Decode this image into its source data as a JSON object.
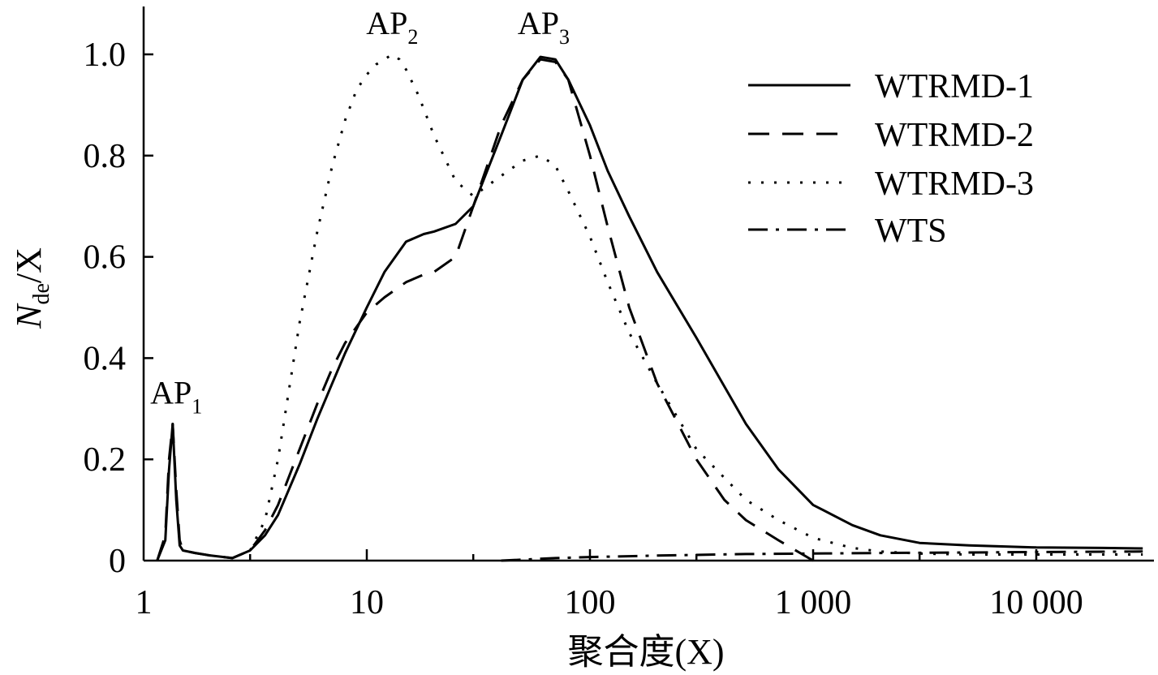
{
  "chart_data": {
    "type": "line",
    "xscale": "log",
    "xlim": [
      1,
      30000
    ],
    "ylim": [
      0,
      1.1
    ],
    "xlabel": "聚合度(X)",
    "ylabel": "N_de/X",
    "xticks": [
      1,
      10,
      100,
      1000,
      10000
    ],
    "xtick_labels": [
      "1",
      "10",
      "100",
      "1 000",
      "10 000"
    ],
    "yticks": [
      0,
      0.2,
      0.4,
      0.6,
      0.8,
      1.0
    ],
    "ytick_labels": [
      "0",
      "0.2",
      "0.4",
      "0.6",
      "0.8",
      "1.0"
    ],
    "grid": false,
    "legend_position": "top-right",
    "annotations": [
      {
        "text": "AP1",
        "main": "AP",
        "sub": "1",
        "x": 1.4,
        "y": 0.31
      },
      {
        "text": "AP2",
        "main": "AP",
        "sub": "2",
        "x": 13,
        "y": 1.04
      },
      {
        "text": "AP3",
        "main": "AP",
        "sub": "3",
        "x": 62,
        "y": 1.04
      }
    ],
    "series": [
      {
        "name": "WTRMD-1",
        "style": "solid",
        "x": [
          1.15,
          1.25,
          1.3,
          1.35,
          1.4,
          1.45,
          1.5,
          1.7,
          2,
          2.5,
          3,
          3.5,
          4,
          5,
          6,
          7,
          8,
          10,
          12,
          15,
          18,
          20,
          25,
          30,
          40,
          50,
          60,
          70,
          80,
          100,
          120,
          150,
          200,
          300,
          500,
          700,
          1000,
          1500,
          2000,
          3000,
          5000,
          10000,
          20000,
          30000
        ],
        "y": [
          0.0,
          0.04,
          0.18,
          0.27,
          0.12,
          0.03,
          0.02,
          0.015,
          0.01,
          0.005,
          0.02,
          0.05,
          0.09,
          0.19,
          0.28,
          0.35,
          0.41,
          0.5,
          0.57,
          0.63,
          0.645,
          0.65,
          0.665,
          0.7,
          0.84,
          0.95,
          0.995,
          0.99,
          0.95,
          0.86,
          0.77,
          0.68,
          0.57,
          0.44,
          0.27,
          0.18,
          0.11,
          0.07,
          0.05,
          0.035,
          0.03,
          0.026,
          0.025,
          0.024
        ]
      },
      {
        "name": "WTRMD-2",
        "style": "dashed",
        "x": [
          1.15,
          1.25,
          1.3,
          1.35,
          1.4,
          1.45,
          1.5,
          1.7,
          2,
          2.5,
          3,
          3.5,
          4,
          5,
          6,
          7,
          8,
          10,
          12,
          15,
          18,
          20,
          25,
          30,
          40,
          50,
          60,
          70,
          80,
          100,
          120,
          150,
          200,
          300,
          400,
          500,
          700,
          1000
        ],
        "y": [
          0.0,
          0.05,
          0.2,
          0.27,
          0.14,
          0.04,
          0.02,
          0.015,
          0.01,
          0.005,
          0.02,
          0.06,
          0.11,
          0.22,
          0.31,
          0.38,
          0.43,
          0.49,
          0.52,
          0.55,
          0.565,
          0.57,
          0.6,
          0.7,
          0.86,
          0.95,
          0.99,
          0.985,
          0.95,
          0.8,
          0.66,
          0.5,
          0.35,
          0.2,
          0.12,
          0.08,
          0.04,
          0.0
        ]
      },
      {
        "name": "WTRMD-3",
        "style": "dotted",
        "x": [
          3,
          3.5,
          4,
          5,
          6,
          7,
          8,
          9,
          10,
          11,
          12,
          13,
          14,
          15,
          17,
          20,
          25,
          30,
          40,
          50,
          60,
          70,
          80,
          100,
          120,
          150,
          200,
          300,
          500,
          700,
          1000,
          1500,
          2000,
          3000,
          5000,
          10000,
          30000
        ],
        "y": [
          0.02,
          0.08,
          0.2,
          0.47,
          0.65,
          0.78,
          0.87,
          0.93,
          0.96,
          0.98,
          0.99,
          1.0,
          0.99,
          0.97,
          0.92,
          0.84,
          0.75,
          0.72,
          0.76,
          0.79,
          0.8,
          0.78,
          0.73,
          0.64,
          0.55,
          0.45,
          0.35,
          0.22,
          0.12,
          0.08,
          0.045,
          0.025,
          0.018,
          0.014,
          0.012,
          0.012,
          0.012
        ]
      },
      {
        "name": "WTS",
        "style": "dashdot",
        "x": [
          40,
          50,
          70,
          100,
          200,
          500,
          1000,
          2000,
          5000,
          10000,
          30000
        ],
        "y": [
          0.0,
          0.002,
          0.005,
          0.007,
          0.01,
          0.013,
          0.014,
          0.015,
          0.016,
          0.017,
          0.018
        ]
      }
    ]
  }
}
